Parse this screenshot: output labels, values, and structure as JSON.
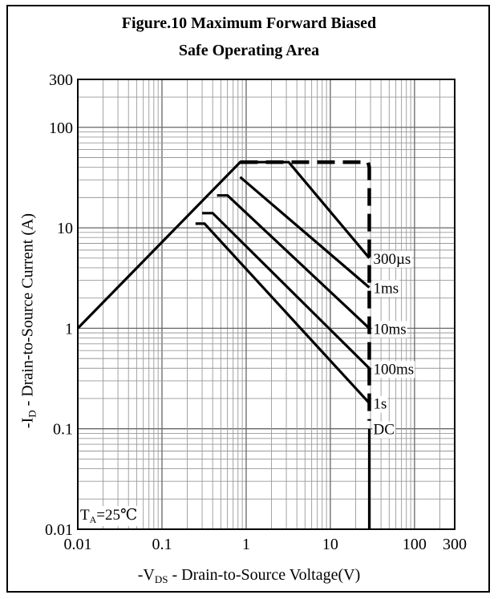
{
  "chart_data": {
    "type": "line",
    "title_line1": "Figure.10 Maximum Forward Biased",
    "title_line2": "Safe Operating Area",
    "xlabel": {
      "prefix": "-V",
      "sub": "DS",
      "suffix": " - Drain-to-Source Voltage(V)"
    },
    "ylabel": {
      "prefix": "-I",
      "sub": "D",
      "suffix": " - Drain-to-Source Current (A)"
    },
    "condition": {
      "prefix": "T",
      "sub": "A",
      "suffix": "=25℃"
    },
    "x_scale": "log",
    "y_scale": "log",
    "xlim": [
      0.01,
      300
    ],
    "ylim": [
      0.01,
      300
    ],
    "grid": true,
    "x_ticks": [
      {
        "value": 0.01,
        "label": "0.01"
      },
      {
        "value": 0.1,
        "label": "0.1"
      },
      {
        "value": 1,
        "label": "1"
      },
      {
        "value": 10,
        "label": "10"
      },
      {
        "value": 100,
        "label": "100"
      },
      {
        "value": 300,
        "label": "300"
      }
    ],
    "y_ticks": [
      {
        "value": 0.01,
        "label": "0.01"
      },
      {
        "value": 0.1,
        "label": "0.1"
      },
      {
        "value": 1,
        "label": "1"
      },
      {
        "value": 10,
        "label": "10"
      },
      {
        "value": 100,
        "label": "100"
      },
      {
        "value": 300,
        "label": "300"
      }
    ],
    "series": [
      {
        "label": "300µs",
        "dashed": false,
        "label_at": [
          29,
          5.0
        ],
        "points": [
          [
            0.01,
            1
          ],
          [
            0.85,
            45
          ],
          [
            3.2,
            45
          ],
          [
            29,
            5.0
          ]
        ]
      },
      {
        "label": "1ms",
        "dashed": false,
        "label_at": [
          29,
          2.55
        ],
        "points": [
          [
            0.85,
            32
          ],
          [
            29,
            2.55
          ]
        ]
      },
      {
        "label": "10ms",
        "dashed": false,
        "label_at": [
          29,
          1.0
        ],
        "points": [
          [
            0.45,
            21
          ],
          [
            0.6,
            21
          ],
          [
            29,
            1.0
          ]
        ]
      },
      {
        "label": "100ms",
        "dashed": false,
        "label_at": [
          29,
          0.4
        ],
        "points": [
          [
            0.3,
            14
          ],
          [
            0.4,
            14
          ],
          [
            29,
            0.4
          ]
        ]
      },
      {
        "label": "1s",
        "dashed": false,
        "label_at": [
          29,
          0.18
        ],
        "points": [
          [
            0.25,
            11
          ],
          [
            0.32,
            11
          ],
          [
            29,
            0.18
          ]
        ]
      },
      {
        "label": "DC",
        "dashed": false,
        "label_at": [
          29,
          0.1
        ],
        "points": [
          [
            29,
            0.1
          ],
          [
            29,
            0.01
          ]
        ]
      },
      {
        "label": "",
        "dashed": true,
        "label_at": null,
        "points": [
          [
            0.85,
            45
          ],
          [
            28,
            45
          ],
          [
            29,
            40
          ],
          [
            29,
            0.12
          ]
        ]
      }
    ]
  }
}
